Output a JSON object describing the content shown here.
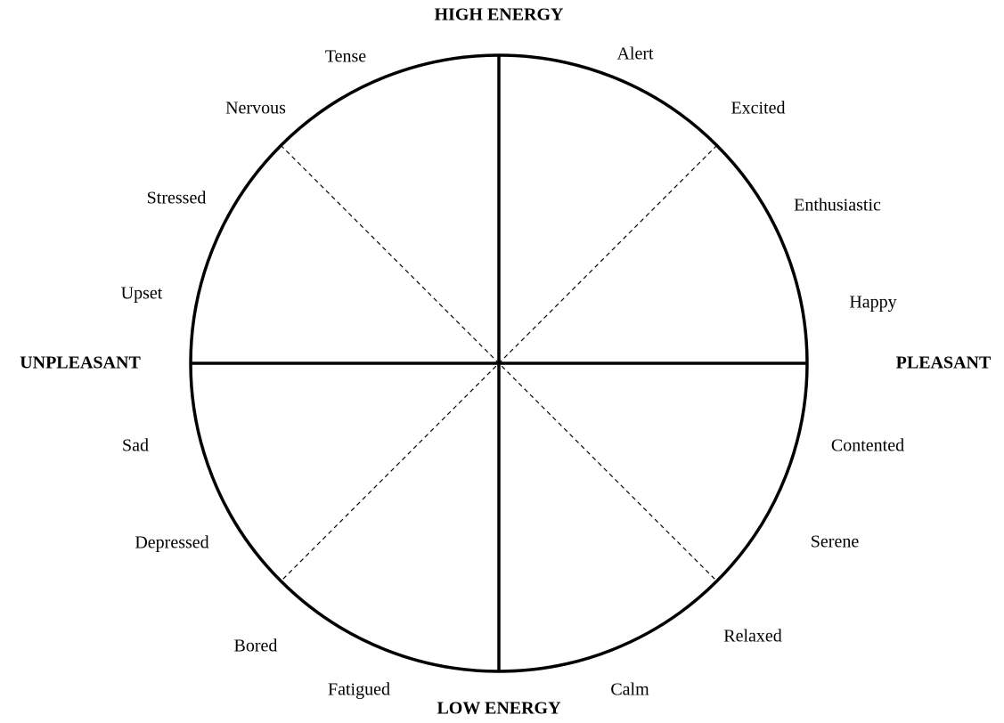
{
  "axes": {
    "top": "HIGH ENERGY",
    "bottom": "LOW ENERGY",
    "left": "UNPLEASANT",
    "right": "PLEASANT"
  },
  "emotions": [
    "Tense",
    "Alert",
    "Nervous",
    "Excited",
    "Stressed",
    "Enthusiastic",
    "Upset",
    "Happy",
    "Sad",
    "Contented",
    "Depressed",
    "Serene",
    "Bored",
    "Relaxed",
    "Fatigued",
    "Calm"
  ]
}
